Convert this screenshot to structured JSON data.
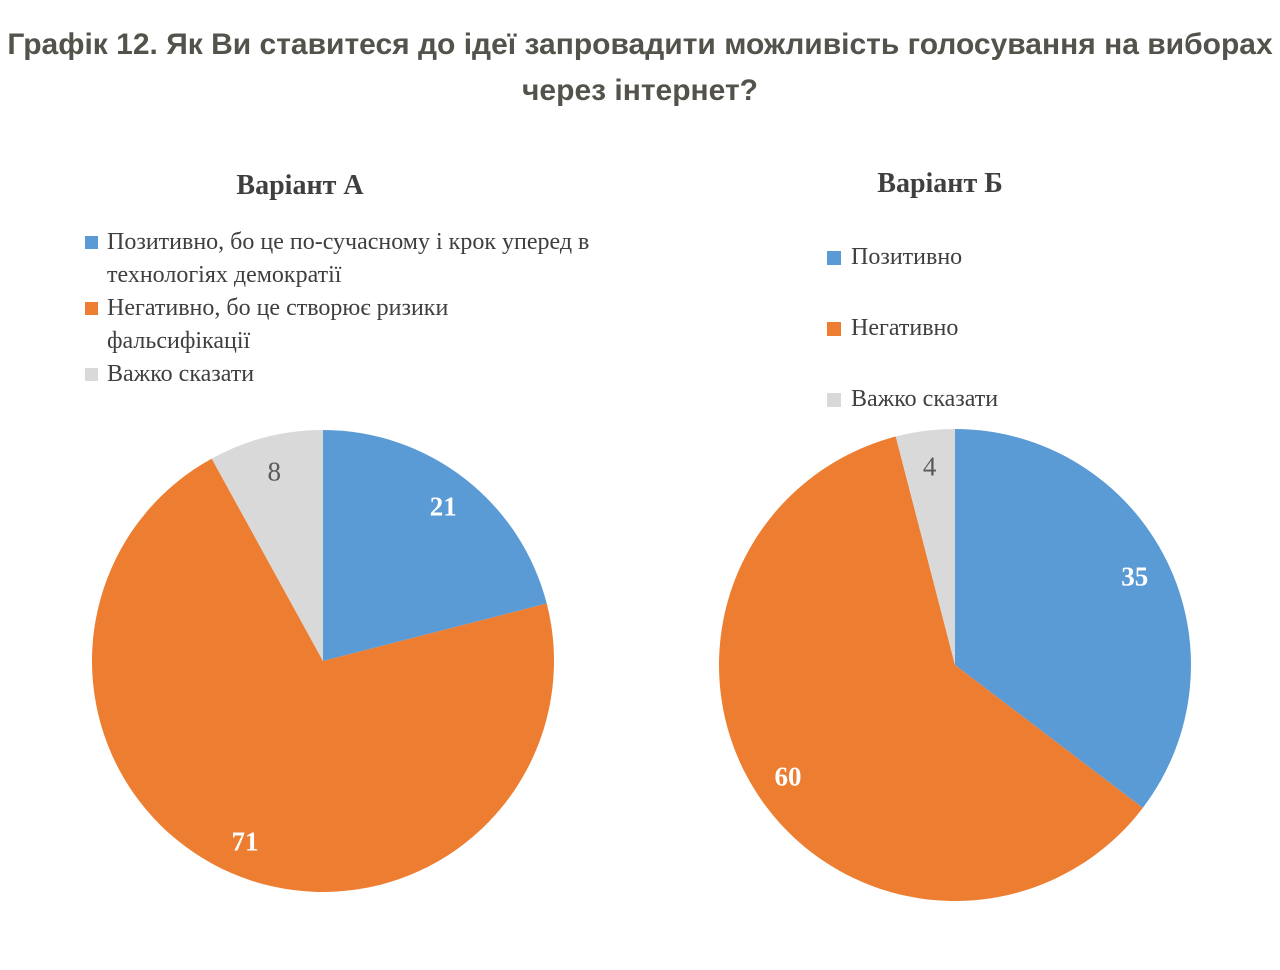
{
  "page_title": {
    "line1": "Графік 12. Як Ви ставитеся до ідеї запровадити можливість голосування на виборах",
    "line2": "через інтернет?"
  },
  "colors": {
    "positive_blue": "#5B9BD5",
    "negative_orange": "#ED7D31",
    "neutral_gray": "#D9D9D9",
    "page_title_text": "#54534B",
    "chart_text": "#3F3F3F",
    "gray_value_text": "#595959"
  },
  "chart_data": [
    {
      "type": "pie",
      "title": "Варіант А",
      "legend_position": "top-left",
      "start_angle_deg": 0,
      "direction": "clockwise",
      "slices": [
        {
          "label": "Позитивно, бо це по-сучасному і крок уперед в технологіях демократії",
          "value": 21,
          "color": "#5B9BD5",
          "value_color": "#FFFFFF",
          "value_bold": true
        },
        {
          "label": "Негативно, бо це створює ризики фальсифікації",
          "value": 71,
          "color": "#ED7D31",
          "value_color": "#FFFFFF",
          "value_bold": true
        },
        {
          "label": "Важко сказати",
          "value": 8,
          "color": "#D9D9D9",
          "value_color": "#595959",
          "value_bold": false
        }
      ]
    },
    {
      "type": "pie",
      "title": "Варіант Б",
      "legend_position": "top",
      "start_angle_deg": 0,
      "direction": "clockwise",
      "slices": [
        {
          "label": "Позитивно",
          "value": 35,
          "color": "#5B9BD5",
          "value_color": "#FFFFFF",
          "value_bold": true
        },
        {
          "label": "Негативно",
          "value": 60,
          "color": "#ED7D31",
          "value_color": "#FFFFFF",
          "value_bold": true
        },
        {
          "label": "Важко сказати",
          "value": 4,
          "color": "#D9D9D9",
          "value_color": "#595959",
          "value_bold": false
        }
      ]
    }
  ]
}
